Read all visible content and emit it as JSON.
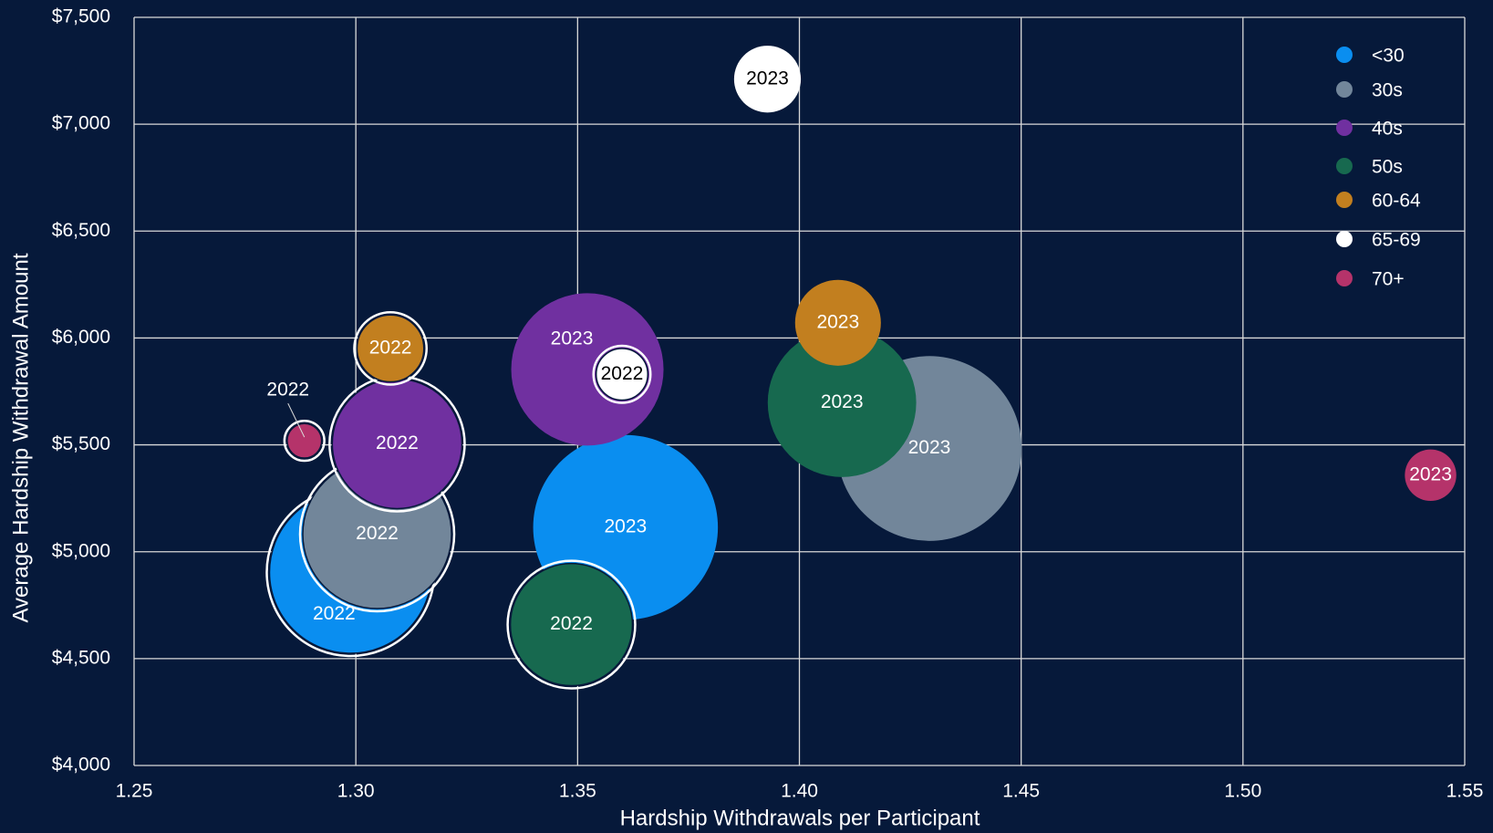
{
  "chart_data": {
    "type": "bubble",
    "x_label": "Hardship Withdrawals per Participant",
    "y_label": "Average Hardship Withdrawal Amount",
    "xlim": [
      1.25,
      1.55
    ],
    "xticks": [
      {
        "value": 1.25,
        "label": "1.25"
      },
      {
        "value": 1.3,
        "label": "1.30"
      },
      {
        "value": 1.35,
        "label": "1.35"
      },
      {
        "value": 1.4,
        "label": "1.40"
      },
      {
        "value": 1.45,
        "label": "1.45"
      },
      {
        "value": 1.5,
        "label": "1.50"
      },
      {
        "value": 1.55,
        "label": "1.55"
      }
    ],
    "ylim": [
      4000,
      7500
    ],
    "yticks": [
      {
        "value": 4000,
        "label": "$4,000"
      },
      {
        "value": 4500,
        "label": "$4,500"
      },
      {
        "value": 5000,
        "label": "$5,000"
      },
      {
        "value": 5500,
        "label": "$5,500"
      },
      {
        "value": 6000,
        "label": "$6,000"
      },
      {
        "value": 6500,
        "label": "$6,500"
      },
      {
        "value": 7000,
        "label": "$7,000"
      },
      {
        "value": 7500,
        "label": "$7,500"
      }
    ],
    "grid": true,
    "legend": "top-right",
    "series": [
      {
        "name": "<30",
        "color": "#0a8ef0",
        "x": [
          1.2988,
          1.3608
        ],
        "values": [
          4904,
          5114
        ],
        "sizes": [
          75.7,
          94.1
        ],
        "labels": [
          "2022",
          "2023"
        ]
      },
      {
        "name": "30s",
        "color": "#72869a",
        "x": [
          1.3048,
          1.4293
        ],
        "values": [
          5082,
          5483
        ],
        "sizes": [
          64,
          94.1
        ],
        "labels": [
          "2022",
          "2023"
        ]
      },
      {
        "name": "40s",
        "color": "#7030a0",
        "x": [
          1.3093,
          1.3522
        ],
        "values": [
          5505,
          5853
        ],
        "sizes": [
          49,
          64
        ],
        "labels": [
          "2022",
          "2023"
        ]
      },
      {
        "name": "50s",
        "color": "#17694f",
        "x": [
          1.3486,
          1.4096
        ],
        "values": [
          4659,
          5697
        ],
        "sizes": [
          43.6,
          60.8
        ],
        "labels": [
          "2022",
          "2023"
        ]
      },
      {
        "name": "60-64",
        "color": "#c27f1f",
        "x": [
          1.3078,
          1.4087
        ],
        "values": [
          5951,
          6071
        ],
        "sizes": [
          13.7,
          20.3
        ],
        "labels": [
          "2022",
          "2023"
        ]
      },
      {
        "name": "65-69",
        "color": "#ffffff",
        "x": [
          1.36,
          1.3928
        ],
        "values": [
          5830,
          7211
        ],
        "sizes": [
          8.4,
          12.3
        ],
        "labels": [
          "2022",
          "2023"
        ]
      },
      {
        "name": "70+",
        "color": "#b5336a",
        "x": [
          1.2884,
          1.5423
        ],
        "values": [
          5519,
          5358
        ],
        "sizes": [
          4,
          7.3
        ],
        "labels": [
          "2022",
          "2023"
        ]
      }
    ]
  }
}
